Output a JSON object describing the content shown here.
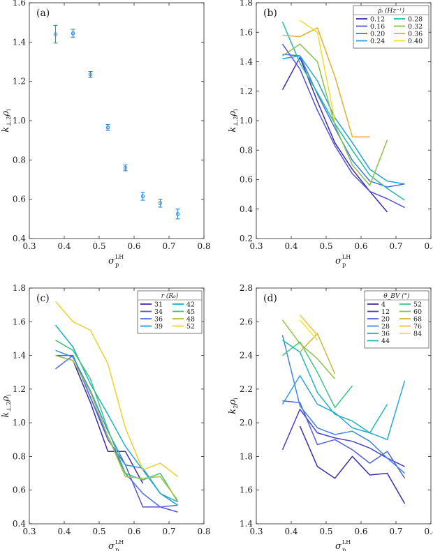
{
  "chart_data": [
    {
      "panel_label": "(a)",
      "type": "scatter",
      "xlabel": {
        "main": "σ",
        "sub": "p",
        "sup": "LH"
      },
      "ylabel": {
        "main": "k",
        "sub": "⊥,2",
        "tail": "ρ",
        "tail_sub": "i"
      },
      "xlim": [
        0.3,
        0.8
      ],
      "ylim": [
        0.4,
        1.6
      ],
      "xticks": [
        "0.3",
        "0.4",
        "0.5",
        "0.6",
        "0.7",
        "0.8"
      ],
      "yticks": [
        "0.4",
        "0.6",
        "0.8",
        "1.0",
        "1.2",
        "1.4",
        "1.6"
      ],
      "error_bars": true,
      "color": "#3b8dd6",
      "points": [
        {
          "x": 0.375,
          "y": 1.44,
          "err": 0.045
        },
        {
          "x": 0.425,
          "y": 1.445,
          "err": 0.02
        },
        {
          "x": 0.475,
          "y": 1.235,
          "err": 0.015
        },
        {
          "x": 0.525,
          "y": 0.965,
          "err": 0.015
        },
        {
          "x": 0.575,
          "y": 0.76,
          "err": 0.015
        },
        {
          "x": 0.625,
          "y": 0.615,
          "err": 0.02
        },
        {
          "x": 0.675,
          "y": 0.58,
          "err": 0.02
        },
        {
          "x": 0.725,
          "y": 0.525,
          "err": 0.025
        }
      ]
    },
    {
      "panel_label": "(b)",
      "type": "line",
      "xlabel": {
        "main": "σ",
        "sub": "p",
        "sup": "LH"
      },
      "ylabel": {
        "main": "k",
        "sub": "⊥,2",
        "tail": "ρ",
        "tail_sub": "i"
      },
      "xlim": [
        0.3,
        0.8
      ],
      "ylim": [
        0.2,
        1.8
      ],
      "xticks": [
        "0.3",
        "0.4",
        "0.5",
        "0.6",
        "0.7",
        "0.8"
      ],
      "yticks": [
        "0.2",
        "0.4",
        "0.6",
        "0.8",
        "1.0",
        "1.2",
        "1.4",
        "1.6",
        "1.8"
      ],
      "legend": {
        "title": "ρ̇ᵢ (Hz⁻¹)",
        "position": "top-right",
        "columns": 2
      },
      "series": [
        {
          "name": "0.12",
          "color": "#3f2aa8",
          "x": [
            0.375,
            0.425,
            0.475,
            0.525,
            0.575,
            0.625,
            0.675
          ],
          "y": [
            1.21,
            1.43,
            1.13,
            0.85,
            0.67,
            0.52,
            0.38
          ]
        },
        {
          "name": "0.16",
          "color": "#5153d8",
          "x": [
            0.375,
            0.425,
            0.475,
            0.525,
            0.575,
            0.625,
            0.675,
            0.725
          ],
          "y": [
            1.52,
            1.35,
            1.07,
            0.83,
            0.64,
            0.52,
            0.47,
            0.41
          ]
        },
        {
          "name": "0.20",
          "color": "#3d75e6",
          "x": [
            0.375,
            0.425,
            0.475,
            0.525,
            0.575,
            0.625,
            0.675,
            0.725
          ],
          "y": [
            1.45,
            1.44,
            1.18,
            0.95,
            0.73,
            0.59,
            0.55,
            0.57
          ]
        },
        {
          "name": "0.24",
          "color": "#1fa2d8",
          "x": [
            0.375,
            0.425,
            0.475,
            0.525,
            0.575,
            0.625,
            0.675,
            0.725
          ],
          "y": [
            1.42,
            1.44,
            1.27,
            1.02,
            0.85,
            0.67,
            0.59,
            0.57
          ]
        },
        {
          "name": "0.28",
          "color": "#1fbd9c",
          "x": [
            0.375,
            0.425,
            0.475,
            0.525,
            0.575,
            0.625,
            0.675,
            0.725
          ],
          "y": [
            1.67,
            1.39,
            1.19,
            0.98,
            0.8,
            0.63,
            0.54,
            0.46
          ]
        },
        {
          "name": "0.32",
          "color": "#86c24a",
          "x": [
            0.375,
            0.425,
            0.475,
            0.525,
            0.575,
            0.625,
            0.675
          ],
          "y": [
            1.44,
            1.52,
            1.4,
            0.97,
            0.7,
            0.56,
            0.87
          ]
        },
        {
          "name": "0.36",
          "color": "#e0b030",
          "x": [
            0.375,
            0.425,
            0.475,
            0.525,
            0.575,
            0.625
          ],
          "y": [
            1.58,
            1.57,
            1.63,
            1.3,
            0.89,
            0.89
          ]
        },
        {
          "name": "0.40",
          "color": "#f0de28",
          "x": [
            0.425,
            0.475,
            0.525
          ],
          "y": [
            1.68,
            1.6,
            1.0
          ]
        }
      ]
    },
    {
      "panel_label": "(c)",
      "type": "line",
      "xlabel": {
        "main": "σ",
        "sub": "p",
        "sup": "LH"
      },
      "ylabel": {
        "main": "k",
        "sub": "⊥,2",
        "tail": "ρ",
        "tail_sub": "i"
      },
      "xlim": [
        0.3,
        0.8
      ],
      "ylim": [
        0.4,
        1.8
      ],
      "xticks": [
        "0.3",
        "0.4",
        "0.5",
        "0.6",
        "0.7",
        "0.8"
      ],
      "yticks": [
        "0.4",
        "0.6",
        "0.8",
        "1.0",
        "1.2",
        "1.4",
        "1.6",
        "1.8"
      ],
      "legend": {
        "title": "r (R₀)",
        "position": "top-right",
        "columns": 2
      },
      "series": [
        {
          "name": "31",
          "color": "#3f2aa8",
          "x": [
            0.375,
            0.425,
            0.475,
            0.525,
            0.575,
            0.625
          ],
          "y": [
            1.4,
            1.37,
            1.12,
            0.83,
            0.83,
            0.64
          ]
        },
        {
          "name": "34",
          "color": "#5153d8",
          "x": [
            0.375,
            0.425,
            0.475,
            0.525,
            0.575,
            0.625,
            0.675,
            0.725
          ],
          "y": [
            1.4,
            1.4,
            1.15,
            0.9,
            0.75,
            0.5,
            0.5,
            0.47
          ]
        },
        {
          "name": "36",
          "color": "#4f6ee8",
          "x": [
            0.375,
            0.425,
            0.475,
            0.525,
            0.575,
            0.625,
            0.675,
            0.725
          ],
          "y": [
            1.32,
            1.4,
            1.15,
            0.92,
            0.7,
            0.58,
            0.5,
            0.51
          ]
        },
        {
          "name": "39",
          "color": "#2a8fe0",
          "x": [
            0.375,
            0.425,
            0.475,
            0.525,
            0.575,
            0.625,
            0.675,
            0.725
          ],
          "y": [
            1.43,
            1.39,
            1.19,
            0.95,
            0.75,
            0.73,
            0.58,
            0.51
          ]
        },
        {
          "name": "42",
          "color": "#1cb0c4",
          "x": [
            0.375,
            0.425,
            0.475,
            0.525,
            0.575,
            0.625,
            0.675,
            0.725
          ],
          "y": [
            1.58,
            1.45,
            1.23,
            1.05,
            0.86,
            0.72,
            0.58,
            0.53
          ]
        },
        {
          "name": "45",
          "color": "#3ec27a",
          "x": [
            0.375,
            0.425,
            0.475,
            0.525,
            0.575,
            0.625,
            0.675,
            0.725
          ],
          "y": [
            1.49,
            1.43,
            1.26,
            0.96,
            0.7,
            0.66,
            0.7,
            0.53
          ]
        },
        {
          "name": "48",
          "color": "#a6c23c",
          "x": [
            0.375,
            0.425,
            0.475,
            0.525,
            0.575,
            0.625,
            0.675,
            0.725
          ],
          "y": [
            1.4,
            1.37,
            1.18,
            0.92,
            0.68,
            0.67,
            0.68,
            0.54
          ]
        },
        {
          "name": "52",
          "color": "#f0d02a",
          "x": [
            0.375,
            0.425,
            0.475,
            0.525,
            0.575,
            0.625,
            0.675,
            0.725
          ],
          "y": [
            1.72,
            1.6,
            1.55,
            1.35,
            0.97,
            0.72,
            0.76,
            0.68
          ]
        }
      ]
    },
    {
      "panel_label": "(d)",
      "type": "line",
      "xlabel": {
        "main": "σ",
        "sub": "p",
        "sup": "LH"
      },
      "ylabel": {
        "main": "k",
        "sub": "2",
        "tail": "ρ",
        "tail_sub": "i"
      },
      "xlim": [
        0.3,
        0.8
      ],
      "ylim": [
        1.4,
        2.8
      ],
      "xticks": [
        "0.3",
        "0.4",
        "0.5",
        "0.6",
        "0.7",
        "0.8"
      ],
      "yticks": [
        "1.4",
        "1.6",
        "1.8",
        "2.0",
        "2.2",
        "2.4",
        "2.6",
        "2.8"
      ],
      "legend": {
        "title": "θ_BV (°)",
        "position": "top-right",
        "columns": 2
      },
      "series": [
        {
          "name": "4",
          "color": "#3f2aa8",
          "x": [
            0.425,
            0.475,
            0.525,
            0.575,
            0.625,
            0.675,
            0.725
          ],
          "y": [
            1.98,
            1.74,
            1.67,
            1.8,
            1.69,
            1.7,
            1.52
          ]
        },
        {
          "name": "12",
          "color": "#4a3fc8",
          "x": [
            0.375,
            0.425,
            0.475,
            0.525,
            0.575,
            0.625,
            0.675,
            0.725
          ],
          "y": [
            1.84,
            2.08,
            1.94,
            1.91,
            1.89,
            1.85,
            1.79,
            1.74
          ]
        },
        {
          "name": "20",
          "color": "#5560e0",
          "x": [
            0.375,
            0.425,
            0.475,
            0.525,
            0.575,
            0.625,
            0.675,
            0.725
          ],
          "y": [
            2.13,
            2.12,
            1.87,
            1.9,
            1.84,
            1.76,
            1.83,
            1.67
          ]
        },
        {
          "name": "28",
          "color": "#3f84ea",
          "x": [
            0.375,
            0.425,
            0.475,
            0.525,
            0.575,
            0.625,
            0.675,
            0.725
          ],
          "y": [
            2.52,
            2.1,
            1.97,
            1.93,
            1.95,
            1.89,
            1.79,
            1.7
          ]
        },
        {
          "name": "36",
          "color": "#2aa4de",
          "x": [
            0.375,
            0.425,
            0.475,
            0.525,
            0.575,
            0.625,
            0.675,
            0.725
          ],
          "y": [
            2.11,
            2.28,
            2.11,
            2.06,
            1.97,
            1.94,
            1.9,
            2.25
          ]
        },
        {
          "name": "44",
          "color": "#1db8b8",
          "x": [
            0.375,
            0.425,
            0.475,
            0.525,
            0.575,
            0.625,
            0.675
          ],
          "y": [
            2.49,
            2.42,
            2.18,
            2.05,
            2.01,
            1.94,
            2.11
          ]
        },
        {
          "name": "52",
          "color": "#3ec585",
          "x": [
            0.375,
            0.425,
            0.475,
            0.525,
            0.575
          ],
          "y": [
            2.4,
            2.48,
            2.3,
            2.09,
            2.22
          ]
        },
        {
          "name": "60",
          "color": "#8cc646",
          "x": [
            0.375,
            0.425,
            0.475,
            0.525
          ],
          "y": [
            2.61,
            2.47,
            2.38,
            2.26
          ]
        },
        {
          "name": "68",
          "color": "#d0b838",
          "x": [
            0.425,
            0.475,
            0.525
          ],
          "y": [
            2.42,
            2.53,
            2.29
          ]
        },
        {
          "name": "76",
          "color": "#eec236",
          "x": [
            0.425,
            0.475
          ],
          "y": [
            2.64,
            2.52
          ]
        },
        {
          "name": "84",
          "color": "#f6e428",
          "x": [
            0.425,
            0.475
          ],
          "y": [
            2.61,
            2.49
          ]
        }
      ]
    }
  ]
}
